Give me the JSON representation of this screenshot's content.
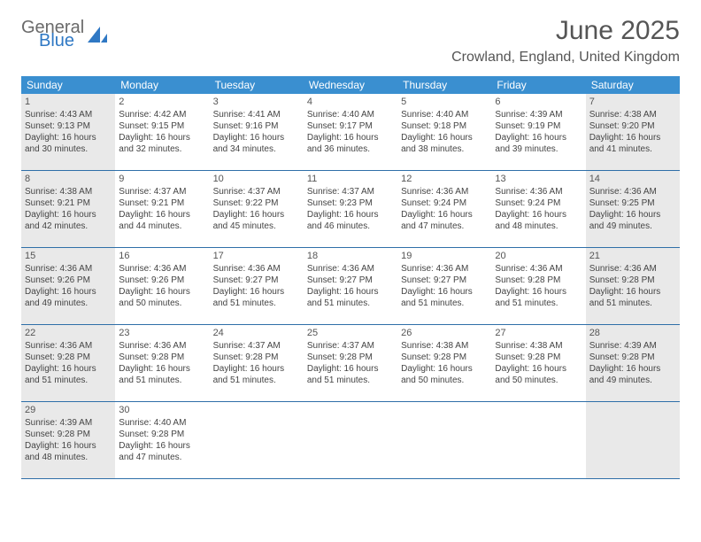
{
  "logo": {
    "text1": "General",
    "text2": "Blue",
    "shape_color": "#2f78c4"
  },
  "header": {
    "month_title": "June 2025",
    "location": "Crowland, England, United Kingdom"
  },
  "colors": {
    "header_bg": "#3a8fd0",
    "row_border": "#2f6fa8",
    "shaded_bg": "#e9e9e9"
  },
  "day_names": [
    "Sunday",
    "Monday",
    "Tuesday",
    "Wednesday",
    "Thursday",
    "Friday",
    "Saturday"
  ],
  "weeks": [
    [
      {
        "num": "1",
        "shaded": true,
        "sunrise": "Sunrise: 4:43 AM",
        "sunset": "Sunset: 9:13 PM",
        "day1": "Daylight: 16 hours",
        "day2": "and 30 minutes."
      },
      {
        "num": "2",
        "shaded": false,
        "sunrise": "Sunrise: 4:42 AM",
        "sunset": "Sunset: 9:15 PM",
        "day1": "Daylight: 16 hours",
        "day2": "and 32 minutes."
      },
      {
        "num": "3",
        "shaded": false,
        "sunrise": "Sunrise: 4:41 AM",
        "sunset": "Sunset: 9:16 PM",
        "day1": "Daylight: 16 hours",
        "day2": "and 34 minutes."
      },
      {
        "num": "4",
        "shaded": false,
        "sunrise": "Sunrise: 4:40 AM",
        "sunset": "Sunset: 9:17 PM",
        "day1": "Daylight: 16 hours",
        "day2": "and 36 minutes."
      },
      {
        "num": "5",
        "shaded": false,
        "sunrise": "Sunrise: 4:40 AM",
        "sunset": "Sunset: 9:18 PM",
        "day1": "Daylight: 16 hours",
        "day2": "and 38 minutes."
      },
      {
        "num": "6",
        "shaded": false,
        "sunrise": "Sunrise: 4:39 AM",
        "sunset": "Sunset: 9:19 PM",
        "day1": "Daylight: 16 hours",
        "day2": "and 39 minutes."
      },
      {
        "num": "7",
        "shaded": true,
        "sunrise": "Sunrise: 4:38 AM",
        "sunset": "Sunset: 9:20 PM",
        "day1": "Daylight: 16 hours",
        "day2": "and 41 minutes."
      }
    ],
    [
      {
        "num": "8",
        "shaded": true,
        "sunrise": "Sunrise: 4:38 AM",
        "sunset": "Sunset: 9:21 PM",
        "day1": "Daylight: 16 hours",
        "day2": "and 42 minutes."
      },
      {
        "num": "9",
        "shaded": false,
        "sunrise": "Sunrise: 4:37 AM",
        "sunset": "Sunset: 9:21 PM",
        "day1": "Daylight: 16 hours",
        "day2": "and 44 minutes."
      },
      {
        "num": "10",
        "shaded": false,
        "sunrise": "Sunrise: 4:37 AM",
        "sunset": "Sunset: 9:22 PM",
        "day1": "Daylight: 16 hours",
        "day2": "and 45 minutes."
      },
      {
        "num": "11",
        "shaded": false,
        "sunrise": "Sunrise: 4:37 AM",
        "sunset": "Sunset: 9:23 PM",
        "day1": "Daylight: 16 hours",
        "day2": "and 46 minutes."
      },
      {
        "num": "12",
        "shaded": false,
        "sunrise": "Sunrise: 4:36 AM",
        "sunset": "Sunset: 9:24 PM",
        "day1": "Daylight: 16 hours",
        "day2": "and 47 minutes."
      },
      {
        "num": "13",
        "shaded": false,
        "sunrise": "Sunrise: 4:36 AM",
        "sunset": "Sunset: 9:24 PM",
        "day1": "Daylight: 16 hours",
        "day2": "and 48 minutes."
      },
      {
        "num": "14",
        "shaded": true,
        "sunrise": "Sunrise: 4:36 AM",
        "sunset": "Sunset: 9:25 PM",
        "day1": "Daylight: 16 hours",
        "day2": "and 49 minutes."
      }
    ],
    [
      {
        "num": "15",
        "shaded": true,
        "sunrise": "Sunrise: 4:36 AM",
        "sunset": "Sunset: 9:26 PM",
        "day1": "Daylight: 16 hours",
        "day2": "and 49 minutes."
      },
      {
        "num": "16",
        "shaded": false,
        "sunrise": "Sunrise: 4:36 AM",
        "sunset": "Sunset: 9:26 PM",
        "day1": "Daylight: 16 hours",
        "day2": "and 50 minutes."
      },
      {
        "num": "17",
        "shaded": false,
        "sunrise": "Sunrise: 4:36 AM",
        "sunset": "Sunset: 9:27 PM",
        "day1": "Daylight: 16 hours",
        "day2": "and 51 minutes."
      },
      {
        "num": "18",
        "shaded": false,
        "sunrise": "Sunrise: 4:36 AM",
        "sunset": "Sunset: 9:27 PM",
        "day1": "Daylight: 16 hours",
        "day2": "and 51 minutes."
      },
      {
        "num": "19",
        "shaded": false,
        "sunrise": "Sunrise: 4:36 AM",
        "sunset": "Sunset: 9:27 PM",
        "day1": "Daylight: 16 hours",
        "day2": "and 51 minutes."
      },
      {
        "num": "20",
        "shaded": false,
        "sunrise": "Sunrise: 4:36 AM",
        "sunset": "Sunset: 9:28 PM",
        "day1": "Daylight: 16 hours",
        "day2": "and 51 minutes."
      },
      {
        "num": "21",
        "shaded": true,
        "sunrise": "Sunrise: 4:36 AM",
        "sunset": "Sunset: 9:28 PM",
        "day1": "Daylight: 16 hours",
        "day2": "and 51 minutes."
      }
    ],
    [
      {
        "num": "22",
        "shaded": true,
        "sunrise": "Sunrise: 4:36 AM",
        "sunset": "Sunset: 9:28 PM",
        "day1": "Daylight: 16 hours",
        "day2": "and 51 minutes."
      },
      {
        "num": "23",
        "shaded": false,
        "sunrise": "Sunrise: 4:36 AM",
        "sunset": "Sunset: 9:28 PM",
        "day1": "Daylight: 16 hours",
        "day2": "and 51 minutes."
      },
      {
        "num": "24",
        "shaded": false,
        "sunrise": "Sunrise: 4:37 AM",
        "sunset": "Sunset: 9:28 PM",
        "day1": "Daylight: 16 hours",
        "day2": "and 51 minutes."
      },
      {
        "num": "25",
        "shaded": false,
        "sunrise": "Sunrise: 4:37 AM",
        "sunset": "Sunset: 9:28 PM",
        "day1": "Daylight: 16 hours",
        "day2": "and 51 minutes."
      },
      {
        "num": "26",
        "shaded": false,
        "sunrise": "Sunrise: 4:38 AM",
        "sunset": "Sunset: 9:28 PM",
        "day1": "Daylight: 16 hours",
        "day2": "and 50 minutes."
      },
      {
        "num": "27",
        "shaded": false,
        "sunrise": "Sunrise: 4:38 AM",
        "sunset": "Sunset: 9:28 PM",
        "day1": "Daylight: 16 hours",
        "day2": "and 50 minutes."
      },
      {
        "num": "28",
        "shaded": true,
        "sunrise": "Sunrise: 4:39 AM",
        "sunset": "Sunset: 9:28 PM",
        "day1": "Daylight: 16 hours",
        "day2": "and 49 minutes."
      }
    ],
    [
      {
        "num": "29",
        "shaded": true,
        "sunrise": "Sunrise: 4:39 AM",
        "sunset": "Sunset: 9:28 PM",
        "day1": "Daylight: 16 hours",
        "day2": "and 48 minutes."
      },
      {
        "num": "30",
        "shaded": false,
        "sunrise": "Sunrise: 4:40 AM",
        "sunset": "Sunset: 9:28 PM",
        "day1": "Daylight: 16 hours",
        "day2": "and 47 minutes."
      },
      {
        "num": "",
        "shaded": false,
        "sunrise": "",
        "sunset": "",
        "day1": "",
        "day2": ""
      },
      {
        "num": "",
        "shaded": false,
        "sunrise": "",
        "sunset": "",
        "day1": "",
        "day2": ""
      },
      {
        "num": "",
        "shaded": false,
        "sunrise": "",
        "sunset": "",
        "day1": "",
        "day2": ""
      },
      {
        "num": "",
        "shaded": false,
        "sunrise": "",
        "sunset": "",
        "day1": "",
        "day2": ""
      },
      {
        "num": "",
        "shaded": true,
        "sunrise": "",
        "sunset": "",
        "day1": "",
        "day2": ""
      }
    ]
  ]
}
